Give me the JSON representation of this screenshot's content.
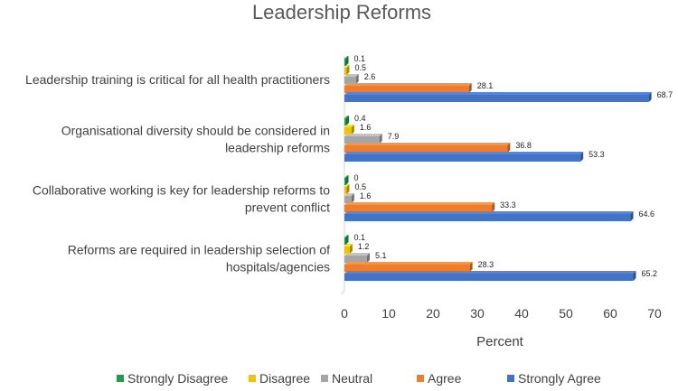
{
  "chart_data": {
    "type": "bar",
    "orientation": "horizontal",
    "title": "Leadership Reforms",
    "xlabel": "Percent",
    "ylabel": "",
    "xlim": [
      0,
      70
    ],
    "xticks": [
      0,
      10,
      20,
      30,
      40,
      50,
      60,
      70
    ],
    "categories": [
      "Leadership training is critical for all health practitioners",
      "Organisational diversity should be considered in leadership reforms",
      "Collaborative working is key for leadership reforms to prevent conflict",
      "Reforms are required in leadership selection of hospitals/agencies"
    ],
    "category_lines": [
      [
        "Leadership training is critical for all health practitioners"
      ],
      [
        "Organisational diversity should be considered in",
        "leadership reforms"
      ],
      [
        "Collaborative working is key for leadership reforms to",
        "prevent conflict"
      ],
      [
        "Reforms are required in leadership selection of",
        "hospitals/agencies"
      ]
    ],
    "series": [
      {
        "name": "Strongly Disagree",
        "color": "#1e9e4a",
        "values": [
          0.1,
          0.4,
          0,
          0.1
        ]
      },
      {
        "name": "Disagree",
        "color": "#f2c200",
        "values": [
          0.5,
          1.6,
          0.5,
          1.2
        ]
      },
      {
        "name": "Neutral",
        "color": "#a5a5a5",
        "values": [
          2.6,
          7.9,
          1.6,
          5.1
        ]
      },
      {
        "name": "Agree",
        "color": "#ed7d31",
        "values": [
          28.1,
          36.8,
          33.3,
          28.3
        ]
      },
      {
        "name": "Strongly Agree",
        "color": "#4472c4",
        "values": [
          68.7,
          53.3,
          64.6,
          65.2
        ]
      }
    ],
    "legend_position": "bottom",
    "grid": false
  }
}
